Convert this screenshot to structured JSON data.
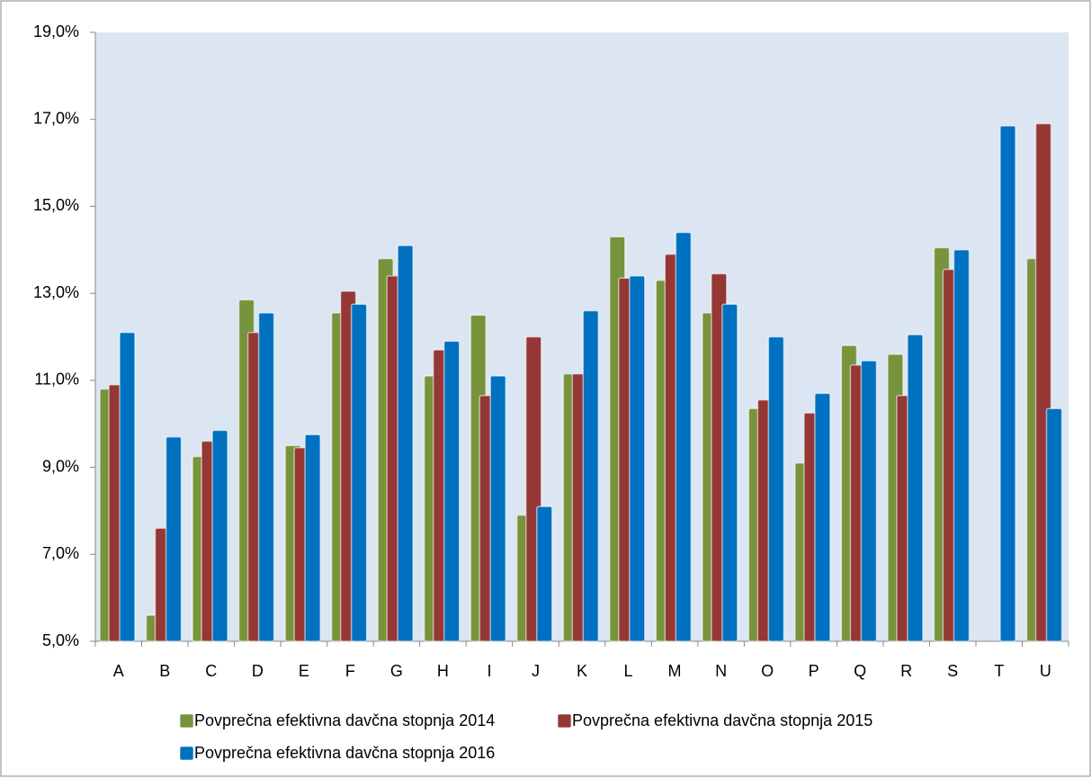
{
  "chart_data": {
    "type": "bar",
    "categories": [
      "A",
      "B",
      "C",
      "D",
      "E",
      "F",
      "G",
      "H",
      "I",
      "J",
      "K",
      "L",
      "M",
      "N",
      "O",
      "P",
      "Q",
      "R",
      "S",
      "T",
      "U"
    ],
    "series": [
      {
        "name": "Povprečna efektivna davčna stopnja 2014",
        "color": "#77933c",
        "values": [
          10.8,
          5.6,
          9.25,
          12.85,
          9.5,
          12.55,
          13.8,
          11.1,
          12.5,
          7.9,
          11.15,
          14.3,
          13.3,
          12.55,
          10.35,
          9.1,
          11.8,
          11.6,
          14.05,
          null,
          13.8
        ]
      },
      {
        "name": "Povprečna efektivna davčna stopnja 2015",
        "color": "#953735",
        "values": [
          10.9,
          7.6,
          9.6,
          12.1,
          9.45,
          13.05,
          13.4,
          11.7,
          10.65,
          12.0,
          11.15,
          13.35,
          13.9,
          13.45,
          10.55,
          10.25,
          11.35,
          10.65,
          13.55,
          null,
          16.9
        ]
      },
      {
        "name": "Povprečna efektivna davčna stopnja 2016",
        "color": "#0070c0",
        "values": [
          12.1,
          9.7,
          9.85,
          12.55,
          9.75,
          12.75,
          14.1,
          11.9,
          11.1,
          8.1,
          12.6,
          13.4,
          14.4,
          12.75,
          12.0,
          10.7,
          11.45,
          12.05,
          14.0,
          16.85,
          10.35
        ]
      }
    ],
    "ylim": [
      5,
      19
    ],
    "yticks": [
      {
        "value": 5,
        "label": "5,0%"
      },
      {
        "value": 7,
        "label": "7,0%"
      },
      {
        "value": 9,
        "label": "9,0%"
      },
      {
        "value": 11,
        "label": "11,0%"
      },
      {
        "value": 13,
        "label": "13,0%"
      },
      {
        "value": 15,
        "label": "15,0%"
      },
      {
        "value": 17,
        "label": "17,0%"
      },
      {
        "value": 19,
        "label": "19,0%"
      }
    ],
    "grid": false,
    "legend": "bottom"
  }
}
